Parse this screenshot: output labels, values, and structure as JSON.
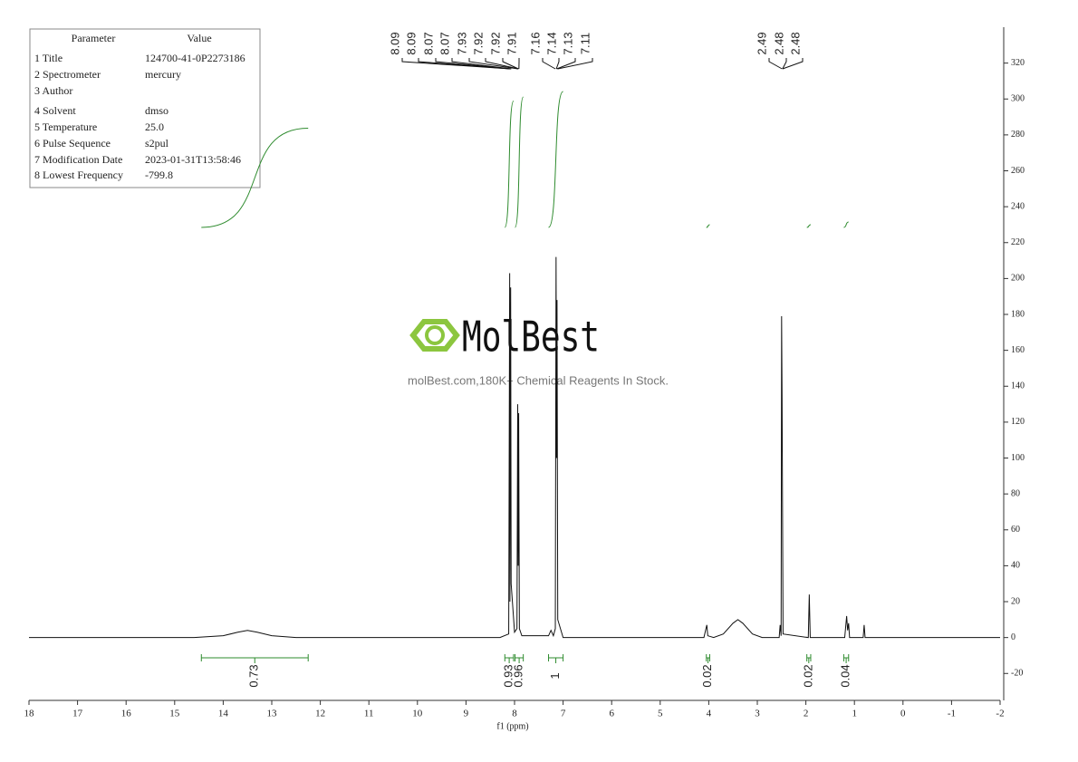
{
  "chart_data": {
    "type": "line",
    "x_label": "f1 (ppm)",
    "x": [
      18,
      14.6,
      14.0,
      13.7,
      13.5,
      13.3,
      13.0,
      12.5,
      8.3,
      8.12,
      8.1,
      8.095,
      8.08,
      8.07,
      8.0,
      7.95,
      7.935,
      7.925,
      7.915,
      7.9,
      7.85,
      7.3,
      7.25,
      7.2,
      7.16,
      7.145,
      7.135,
      7.125,
      7.11,
      7.0,
      4.1,
      4.04,
      4.02,
      3.9,
      3.7,
      3.5,
      3.4,
      3.3,
      3.1,
      2.9,
      2.55,
      2.53,
      2.51,
      2.5,
      2.49,
      2.47,
      1.95,
      1.93,
      1.91,
      1.2,
      1.16,
      1.14,
      1.12,
      1.1,
      0.82,
      0.8,
      0.78,
      -2
    ],
    "values": [
      0,
      0,
      1,
      3,
      4,
      3,
      1,
      0,
      0,
      2,
      203,
      20,
      195,
      30,
      3,
      5,
      130,
      40,
      125,
      5,
      1,
      1,
      4,
      1,
      5,
      212,
      100,
      188,
      10,
      0,
      0,
      7,
      1,
      0,
      2,
      8,
      10,
      8,
      2,
      0,
      0,
      7,
      1,
      179,
      133,
      2,
      0,
      24,
      0,
      0,
      12,
      4,
      8,
      0,
      0,
      7,
      0,
      0
    ],
    "color": "#111111",
    "xlim": [
      18,
      -2
    ],
    "xticks": [
      18,
      17,
      16,
      15,
      14,
      13,
      12,
      11,
      10,
      9,
      8,
      7,
      6,
      5,
      4,
      3,
      2,
      1,
      0,
      -1,
      -2
    ],
    "ylim": [
      -35,
      340
    ],
    "yticks": [
      -20,
      0,
      20,
      40,
      60,
      80,
      100,
      120,
      140,
      160,
      180,
      200,
      220,
      240,
      260,
      280,
      300,
      320
    ],
    "peak_labels": [
      8.09,
      8.09,
      8.07,
      8.07,
      7.93,
      7.92,
      7.92,
      7.91,
      7.16,
      7.14,
      7.13,
      7.11,
      2.49,
      2.48,
      2.48
    ],
    "integrals": [
      {
        "from": 14.45,
        "to": 12.25,
        "value": 0.73
      },
      {
        "from": 8.2,
        "to": 8.02,
        "value": 0.93
      },
      {
        "from": 7.99,
        "to": 7.82,
        "value": 0.96
      },
      {
        "from": 7.3,
        "to": 7.0,
        "value": 1.0
      },
      {
        "from": 4.05,
        "to": 3.98,
        "value": 0.02
      },
      {
        "from": 1.98,
        "to": 1.9,
        "value": 0.02
      },
      {
        "from": 1.22,
        "to": 1.12,
        "value": 0.04
      }
    ],
    "integral_color": "#2e8b2e"
  },
  "parameter_table": {
    "header": [
      "Parameter",
      "Value"
    ],
    "rows": [
      [
        "1 Title",
        "124700-41-0P2273186"
      ],
      [
        "2 Spectrometer",
        "mercury"
      ],
      [
        "3 Author",
        ""
      ],
      [
        "4 Solvent",
        "dmso"
      ],
      [
        "5 Temperature",
        "25.0"
      ],
      [
        "6 Pulse Sequence",
        "s2pul"
      ],
      [
        "7 Modification Date",
        "2023-01-31T13:58:46"
      ],
      [
        "8 Lowest Frequency",
        "-799.8"
      ]
    ]
  },
  "watermark": {
    "brand": "MolBest",
    "tagline": "molBest.com,180K+ Chemical Reagents In Stock."
  }
}
